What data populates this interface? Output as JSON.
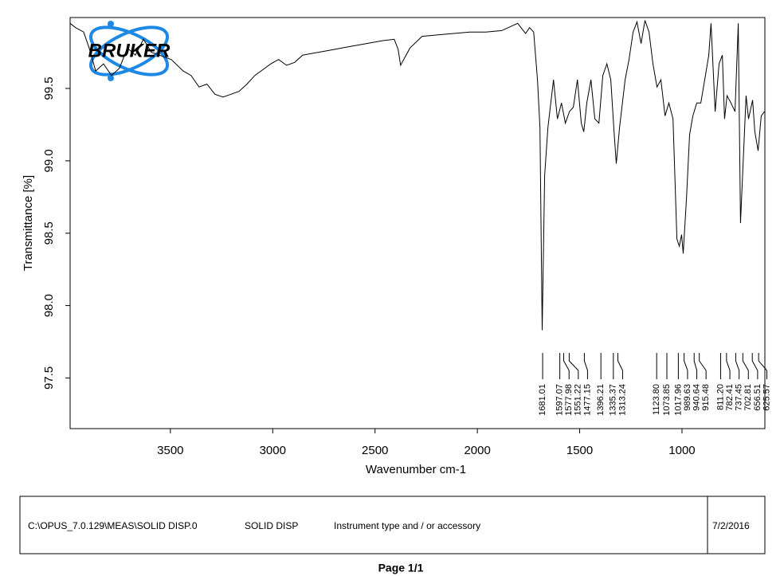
{
  "chart_data": {
    "type": "line",
    "logo": "BRUKER",
    "xlabel": "Wavenumber cm-1",
    "ylabel": "Transmittance [%]",
    "xlim": [
      3990,
      595
    ],
    "ylim": [
      97.15,
      99.99
    ],
    "xticks": [
      3500,
      3000,
      2500,
      2000,
      1500,
      1000
    ],
    "yticks": [
      97.5,
      {
        "value": 98,
        "label": "98.0"
      },
      98.5,
      {
        "value": 99,
        "label": "99.0"
      },
      99.5
    ],
    "series": [
      {
        "color": "#000000",
        "x": [
          3990,
          3963,
          3924,
          3897,
          3865,
          3827,
          3788,
          3749,
          3710,
          3671,
          3632,
          3593,
          3554,
          3496,
          3437,
          3399,
          3360,
          3321,
          3282,
          3243,
          3204,
          3165,
          3126,
          3087,
          3048,
          3009,
          2971,
          2932,
          2893,
          2854,
          2815,
          2776,
          2698,
          2620,
          2543,
          2465,
          2406,
          2387,
          2375,
          2360,
          2329,
          2270,
          2192,
          2115,
          2037,
          1959,
          1881,
          1803,
          1764,
          1745,
          1725,
          1706,
          1694,
          1683,
          1671,
          1655,
          1628,
          1609,
          1589,
          1570,
          1550,
          1531,
          1511,
          1492,
          1480,
          1465,
          1445,
          1426,
          1406,
          1387,
          1367,
          1348,
          1332,
          1321,
          1305,
          1278,
          1259,
          1239,
          1220,
          1200,
          1181,
          1161,
          1142,
          1122,
          1103,
          1083,
          1064,
          1044,
          1025,
          1013,
          1002,
          994,
          978,
          963,
          947,
          928,
          908,
          889,
          869,
          858,
          838,
          819,
          803,
          792,
          780,
          761,
          741,
          725,
          714,
          702,
          687,
          675,
          655,
          644,
          628,
          613,
          597
        ],
        "values": [
          99.95,
          99.92,
          99.89,
          99.78,
          99.62,
          99.67,
          99.59,
          99.64,
          99.78,
          99.73,
          99.84,
          99.75,
          99.73,
          99.7,
          99.62,
          99.59,
          99.51,
          99.53,
          99.46,
          99.44,
          99.46,
          99.48,
          99.53,
          99.59,
          99.63,
          99.67,
          99.7,
          99.66,
          99.68,
          99.73,
          99.74,
          99.75,
          99.77,
          99.79,
          99.81,
          99.83,
          99.84,
          99.77,
          99.66,
          99.7,
          99.78,
          99.86,
          99.87,
          99.88,
          99.89,
          99.89,
          99.9,
          99.95,
          99.88,
          99.92,
          99.89,
          99.56,
          99.23,
          97.83,
          98.9,
          99.23,
          99.56,
          99.29,
          99.4,
          99.26,
          99.34,
          99.37,
          99.56,
          99.26,
          99.2,
          99.4,
          99.56,
          99.29,
          99.26,
          99.59,
          99.67,
          99.56,
          99.2,
          98.98,
          99.23,
          99.56,
          99.7,
          99.89,
          99.96,
          99.81,
          99.97,
          99.89,
          99.67,
          99.51,
          99.56,
          99.31,
          99.4,
          99.29,
          98.46,
          98.41,
          98.49,
          98.36,
          98.74,
          99.18,
          99.31,
          99.4,
          99.4,
          99.56,
          99.73,
          99.95,
          99.34,
          99.67,
          99.73,
          99.29,
          99.45,
          99.4,
          99.34,
          99.95,
          98.57,
          98.96,
          99.45,
          99.29,
          99.42,
          99.2,
          99.07,
          99.31,
          99.34
        ]
      }
    ],
    "peaks": [
      1681.01,
      1597.07,
      1577.98,
      1551.22,
      1477.15,
      1396.21,
      1335.37,
      1313.24,
      1123.8,
      1073.85,
      1017.96,
      989.63,
      940.64,
      915.48,
      811.2,
      782.41,
      737.45,
      702.81,
      656.51,
      625.57
    ],
    "peak_labels": [
      "1681.01",
      "1597.07",
      "1577.98",
      "1551.22",
      "1477.15",
      "1396.21",
      "1335.37",
      "1313.24",
      "1123.80",
      "1073.85",
      "1017.96",
      "989.63",
      "940.64",
      "915.48",
      "811.20",
      "782.41",
      "737.45",
      "702.81",
      "656.51",
      "625.57"
    ]
  },
  "footer": {
    "path": "C:\\OPUS_7.0.129\\MEAS\\SOLID DISP.0",
    "sample": "SOLID DISP",
    "instrument": "Instrument type and / or accessory",
    "date": "7/2/2016"
  },
  "page": "Page 1/1"
}
